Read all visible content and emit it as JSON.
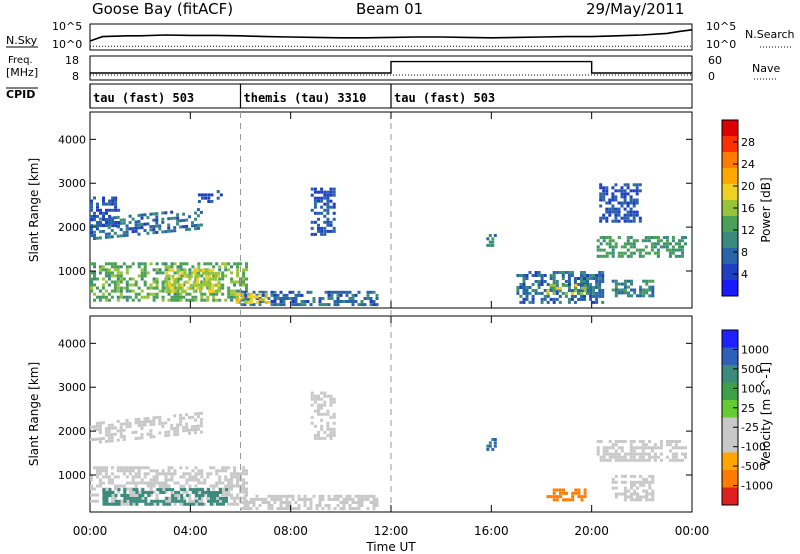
{
  "header": {
    "station": "Goose Bay (fitACF)",
    "beam": "Beam 01",
    "date": "29/May/2011"
  },
  "colors": {
    "power_scale": [
      "#1a1aff",
      "#1f3fc2",
      "#2a64a8",
      "#3b8a7e",
      "#4aa056",
      "#98c43a",
      "#f0d020",
      "#ffa800",
      "#ff7a00",
      "#ff3000",
      "#dd0000"
    ],
    "velocity_scale": [
      "#2020ff",
      "#2f5fb8",
      "#3b8a7e",
      "#3da049",
      "#66cc33",
      "#c8c8c8",
      "#c8c8c8",
      "#ffa500",
      "#ff7a00",
      "#e02020"
    ]
  },
  "chart_data": [
    {
      "type": "line",
      "panel": "noise",
      "left_label": "N.Sky",
      "right_label": "N.Search",
      "left_ticks": [
        "10^5",
        "10^0"
      ],
      "right_ticks": [
        "10^5",
        "10^0"
      ],
      "x": [
        0,
        0.5,
        1,
        1.5,
        2,
        3,
        4,
        5,
        6,
        7,
        8,
        9,
        10,
        11,
        12,
        13,
        14,
        15,
        16,
        17,
        18,
        19,
        20,
        21,
        22,
        23,
        23.5,
        24
      ],
      "sky": [
        1.5,
        2.6,
        2.7,
        2.8,
        2.8,
        3.0,
        2.9,
        2.9,
        2.8,
        2.6,
        2.5,
        2.4,
        2.3,
        2.3,
        2.4,
        2.5,
        2.5,
        2.4,
        2.3,
        2.4,
        2.5,
        2.6,
        2.6,
        2.8,
        3.0,
        3.4,
        3.9,
        4.3
      ],
      "search": "dotted line near 10^0 across full day"
    },
    {
      "type": "line",
      "panel": "frequency-nave",
      "left_label_1": "Freq.",
      "left_label_2": "[MHz]",
      "right_label": "Nave",
      "left_ticks": [
        "18",
        "8"
      ],
      "right_ticks": [
        "60",
        "0"
      ],
      "freq_segments": [
        {
          "x0": 0,
          "x1": 12,
          "value": 10.5
        },
        {
          "x0": 12,
          "x1": 20,
          "value": 16.2
        },
        {
          "x0": 20,
          "x1": 24,
          "value": 10.5
        }
      ],
      "nave": "dotted line near 14 across full day"
    },
    {
      "type": "table",
      "panel": "cpid",
      "label": "CPID",
      "segments": [
        {
          "x0": 0,
          "x1": 6,
          "text": "tau (fast) 503"
        },
        {
          "x0": 6,
          "x1": 12,
          "text": "themis (tau) 3310"
        },
        {
          "x0": 12,
          "x1": 24,
          "text": "tau (fast) 503"
        }
      ]
    },
    {
      "type": "heatmap",
      "panel": "power",
      "ylabel": "Slant Range [km]",
      "ylim": [
        180,
        4600
      ],
      "yticks": [
        "4000",
        "3000",
        "2000",
        "1000"
      ],
      "colorbar_label": "Power [dB]",
      "colorbar_ticks": [
        "28",
        "24",
        "20",
        "16",
        "12",
        "8",
        "4"
      ],
      "blobs": [
        {
          "x0": 0.0,
          "x1": 4.5,
          "y0": 1700,
          "y1": 2200,
          "slope": 250,
          "n": 1,
          "value": 8
        },
        {
          "x0": 4.3,
          "x1": 5.3,
          "y0": 2550,
          "y1": 2850,
          "slope": 0,
          "n": 1,
          "value": 6
        },
        {
          "x0": 0.0,
          "x1": 1.2,
          "y0": 2000,
          "y1": 2700,
          "slope": 0,
          "n": 1,
          "value": 6
        },
        {
          "x0": 0.0,
          "x1": 6.3,
          "y0": 300,
          "y1": 1200,
          "slope": 0,
          "n": 1,
          "value": 14
        },
        {
          "x0": 3.0,
          "x1": 5.2,
          "y0": 500,
          "y1": 1050,
          "slope": 0,
          "n": 1,
          "value": 18
        },
        {
          "x0": 6.0,
          "x1": 11.5,
          "y0": 200,
          "y1": 550,
          "slope": 0,
          "n": 1,
          "value": 8
        },
        {
          "x0": 5.8,
          "x1": 7.2,
          "y0": 250,
          "y1": 500,
          "slope": 0,
          "n": 1,
          "value": 20
        },
        {
          "x0": 8.8,
          "x1": 9.8,
          "y0": 1800,
          "y1": 2900,
          "slope": 0,
          "n": 1,
          "value": 6
        },
        {
          "x0": 15.8,
          "x1": 16.2,
          "y0": 1550,
          "y1": 1850,
          "slope": 0,
          "n": 1,
          "value": 10
        },
        {
          "x0": 17.0,
          "x1": 20.5,
          "y0": 250,
          "y1": 1000,
          "slope": 0,
          "n": 1,
          "value": 8
        },
        {
          "x0": 18.2,
          "x1": 19.8,
          "y0": 450,
          "y1": 700,
          "slope": 0,
          "n": 1,
          "value": 16
        },
        {
          "x0": 20.2,
          "x1": 23.8,
          "y0": 1300,
          "y1": 1800,
          "slope": 0,
          "n": 1,
          "value": 12
        },
        {
          "x0": 20.3,
          "x1": 22.0,
          "y0": 2100,
          "y1": 3000,
          "slope": 0,
          "n": 1,
          "value": 6
        },
        {
          "x0": 20.8,
          "x1": 22.5,
          "y0": 400,
          "y1": 800,
          "slope": 0,
          "n": 1,
          "value": 10
        }
      ]
    },
    {
      "type": "heatmap",
      "panel": "velocity",
      "ylabel": "Slant Range [km]",
      "ylim": [
        180,
        4600
      ],
      "yticks": [
        "4000",
        "3000",
        "2000",
        "1000"
      ],
      "colorbar_label": "Velocity [m s^-1]",
      "colorbar_ticks": [
        "1000",
        "500",
        "100",
        "25",
        "-25",
        "-100",
        "-500",
        "-1000"
      ],
      "blobs": [
        {
          "x0": 0.0,
          "x1": 4.5,
          "y0": 1700,
          "y1": 2200,
          "slope": 250,
          "n": 1,
          "value": 0
        },
        {
          "x0": 0.0,
          "x1": 6.3,
          "y0": 300,
          "y1": 1200,
          "slope": 0,
          "n": 1,
          "value": 0
        },
        {
          "x0": 0.5,
          "x1": 5.5,
          "y0": 300,
          "y1": 700,
          "slope": 0,
          "n": 1,
          "value": 150
        },
        {
          "x0": 6.0,
          "x1": 11.5,
          "y0": 200,
          "y1": 550,
          "slope": 0,
          "n": 1,
          "value": 0
        },
        {
          "x0": 8.8,
          "x1": 9.8,
          "y0": 1800,
          "y1": 2900,
          "slope": 0,
          "n": 1,
          "value": 0
        },
        {
          "x0": 15.8,
          "x1": 16.2,
          "y0": 1550,
          "y1": 1850,
          "slope": 0,
          "n": 1,
          "value": 300
        },
        {
          "x0": 18.2,
          "x1": 19.8,
          "y0": 400,
          "y1": 700,
          "slope": 0,
          "n": 1,
          "value": -300
        },
        {
          "x0": 20.2,
          "x1": 23.8,
          "y0": 1300,
          "y1": 1800,
          "slope": 0,
          "n": 1,
          "value": 0
        },
        {
          "x0": 20.8,
          "x1": 22.5,
          "y0": 400,
          "y1": 1000,
          "slope": 0,
          "n": 1,
          "value": 0
        }
      ]
    }
  ],
  "xaxis": {
    "label": "Time UT",
    "ticks": [
      "00:00",
      "04:00",
      "08:00",
      "12:00",
      "16:00",
      "20:00",
      "00:00"
    ],
    "range_hours": [
      0,
      24
    ],
    "dashed_lines_hours": [
      6,
      12
    ]
  }
}
